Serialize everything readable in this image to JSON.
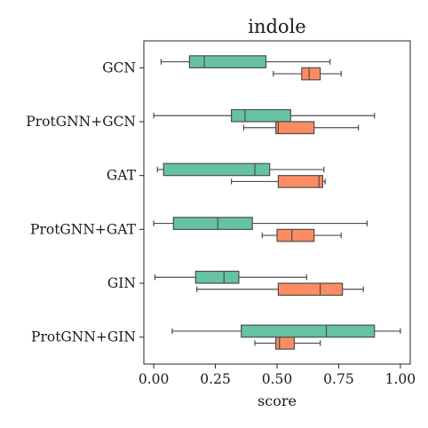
{
  "chart_data": {
    "type": "boxplot",
    "orientation": "horizontal",
    "title": "indole",
    "xlabel": "score",
    "ylabel": "",
    "xlim": [
      -0.04,
      1.04
    ],
    "xticks": [
      0.0,
      0.25,
      0.5,
      0.75,
      1.0
    ],
    "xtick_labels": [
      "0.00",
      "0.25",
      "0.50",
      "0.75",
      "1.00"
    ],
    "grid": false,
    "colors": {
      "series_a": "#66c2a5",
      "series_b": "#fc8d62",
      "edge": "#4d4d4d"
    },
    "categories": [
      "GCN",
      "ProtGNN+GCN",
      "GAT",
      "ProtGNN+GAT",
      "GIN",
      "ProtGNN+GIN"
    ],
    "series": [
      {
        "boxes": [
          {
            "min": 0.03,
            "q1": 0.145,
            "median": 0.205,
            "q3": 0.455,
            "max": 0.715
          },
          {
            "min": 0.0,
            "q1": 0.315,
            "median": 0.37,
            "q3": 0.555,
            "max": 0.895
          },
          {
            "min": 0.015,
            "q1": 0.04,
            "median": 0.41,
            "q3": 0.47,
            "max": 0.69
          },
          {
            "min": 0.0,
            "q1": 0.08,
            "median": 0.26,
            "q3": 0.4,
            "max": 0.865
          },
          {
            "min": 0.005,
            "q1": 0.17,
            "median": 0.285,
            "q3": 0.345,
            "max": 0.62
          },
          {
            "min": 0.075,
            "q1": 0.355,
            "median": 0.7,
            "q3": 0.895,
            "max": 1.0
          }
        ]
      },
      {
        "boxes": [
          {
            "min": 0.485,
            "q1": 0.6,
            "median": 0.63,
            "q3": 0.675,
            "max": 0.76
          },
          {
            "min": 0.365,
            "q1": 0.495,
            "median": 0.505,
            "q3": 0.65,
            "max": 0.83
          },
          {
            "min": 0.315,
            "q1": 0.505,
            "median": 0.67,
            "q3": 0.685,
            "max": 0.695
          },
          {
            "min": 0.44,
            "q1": 0.5,
            "median": 0.56,
            "q3": 0.65,
            "max": 0.76
          },
          {
            "min": 0.175,
            "q1": 0.505,
            "median": 0.675,
            "q3": 0.765,
            "max": 0.85
          },
          {
            "min": 0.41,
            "q1": 0.495,
            "median": 0.51,
            "q3": 0.57,
            "max": 0.675
          }
        ]
      }
    ]
  }
}
